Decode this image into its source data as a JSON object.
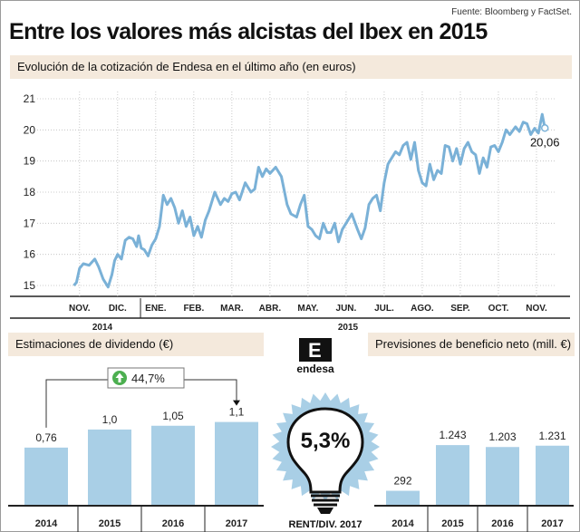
{
  "header": {
    "source": "Fuente: Bloomberg y FactSet.",
    "title": "Entre los valores más alcistas del Ibex en 2015"
  },
  "colors": {
    "series": "#7ab1d7",
    "bar": "#a9cfe6",
    "band": "#f4e9dc",
    "axis": "#333333"
  },
  "line_section": {
    "subtitle": "Evolución de la cotización de Endesa en el último año (en euros)"
  },
  "dividend_section": {
    "subtitle": "Estimaciones de dividendo (€)",
    "growth_label": "44,7%",
    "growth_icon": "arrow-up-icon"
  },
  "center_badge": {
    "logo_text": "endesa",
    "logo_mark": "E",
    "value": "5,3%",
    "caption": "RENT/DIV. 2017",
    "icon": "lightbulb-icon"
  },
  "profit_section": {
    "subtitle": "Previsiones de beneficio neto (mill. €)"
  },
  "chart_data": [
    {
      "type": "line",
      "title": "Evolución de la cotización de Endesa en el último año (en euros)",
      "ylim": [
        15,
        21
      ],
      "yticks": [
        15,
        16,
        17,
        18,
        19,
        20,
        21
      ],
      "grid": true,
      "xticks": [
        {
          "label": "NOV.",
          "x": 0
        },
        {
          "label": "DIC.",
          "x": 1
        },
        {
          "label": "ENE.",
          "x": 2
        },
        {
          "label": "FEB.",
          "x": 3
        },
        {
          "label": "MAR.",
          "x": 4
        },
        {
          "label": "ABR.",
          "x": 5
        },
        {
          "label": "MAY.",
          "x": 6
        },
        {
          "label": "JUN.",
          "x": 7
        },
        {
          "label": "JUL.",
          "x": 8
        },
        {
          "label": "AGO.",
          "x": 9
        },
        {
          "label": "SEP.",
          "x": 10
        },
        {
          "label": "OCT.",
          "x": 11
        },
        {
          "label": "NOV.",
          "x": 12
        }
      ],
      "year_labels": [
        {
          "label": "2014",
          "from": -0.4,
          "to": 1.6
        },
        {
          "label": "2015",
          "from": 1.6,
          "to": 12.5
        }
      ],
      "last_label": "20,06",
      "series": [
        {
          "x": [
            -0.15,
            -0.08,
            0.0,
            0.1,
            0.25,
            0.4,
            0.5,
            0.62,
            0.75,
            0.85,
            0.92,
            1.0,
            1.1,
            1.2,
            1.3,
            1.4,
            1.5,
            1.55,
            1.62,
            1.7,
            1.8,
            1.9,
            2.0,
            2.1,
            2.2,
            2.3,
            2.4,
            2.5,
            2.6,
            2.7,
            2.8,
            2.9,
            3.0,
            3.1,
            3.2,
            3.3,
            3.4,
            3.55,
            3.7,
            3.8,
            3.9,
            4.0,
            4.1,
            4.2,
            4.35,
            4.5,
            4.6,
            4.7,
            4.8,
            4.9,
            5.0,
            5.15,
            5.3,
            5.45,
            5.55,
            5.7,
            5.8,
            5.9,
            6.0,
            6.1,
            6.2,
            6.3,
            6.4,
            6.5,
            6.6,
            6.7,
            6.8,
            6.9,
            7.0,
            7.15,
            7.3,
            7.4,
            7.5,
            7.6,
            7.7,
            7.8,
            7.9,
            8.0,
            8.1,
            8.2,
            8.3,
            8.4,
            8.5,
            8.6,
            8.7,
            8.8,
            8.9,
            9.0,
            9.1,
            9.2,
            9.3,
            9.4,
            9.5,
            9.6,
            9.7,
            9.8,
            9.9,
            10.0,
            10.1,
            10.2,
            10.3,
            10.4,
            10.5,
            10.6,
            10.7,
            10.8,
            10.9,
            11.0,
            11.1,
            11.2,
            11.3,
            11.45,
            11.55,
            11.65,
            11.75,
            11.85,
            11.95,
            12.05,
            12.15,
            12.22
          ],
          "y": [
            15.0,
            15.1,
            15.55,
            15.7,
            15.65,
            15.85,
            15.6,
            15.2,
            14.95,
            15.35,
            15.8,
            16.0,
            15.85,
            16.45,
            16.55,
            16.5,
            16.25,
            16.6,
            16.2,
            16.15,
            15.95,
            16.3,
            16.5,
            16.9,
            17.9,
            17.6,
            17.8,
            17.5,
            17.0,
            17.4,
            16.9,
            17.2,
            16.6,
            16.9,
            16.55,
            17.1,
            17.4,
            18.0,
            17.6,
            17.8,
            17.7,
            17.95,
            18.0,
            17.75,
            18.3,
            18.0,
            18.1,
            18.8,
            18.5,
            18.75,
            18.6,
            18.8,
            18.5,
            17.6,
            17.3,
            17.2,
            17.6,
            17.9,
            16.9,
            16.8,
            16.6,
            16.5,
            17.0,
            16.7,
            16.7,
            17.0,
            16.4,
            16.8,
            17.0,
            17.3,
            16.8,
            16.5,
            16.85,
            17.6,
            17.8,
            17.9,
            17.4,
            18.3,
            18.9,
            19.1,
            19.3,
            19.2,
            19.5,
            19.6,
            19.05,
            19.6,
            18.7,
            18.3,
            18.2,
            18.9,
            18.4,
            18.7,
            18.6,
            19.5,
            19.45,
            19.0,
            19.4,
            18.9,
            19.4,
            19.6,
            19.3,
            19.2,
            18.6,
            19.1,
            18.8,
            19.45,
            19.5,
            19.3,
            19.6,
            20.0,
            19.85,
            20.1,
            19.95,
            20.25,
            20.2,
            19.85,
            20.05,
            19.9,
            20.5,
            20.06
          ]
        }
      ]
    },
    {
      "type": "bar",
      "title": "Estimaciones de dividendo (€)",
      "categories": [
        "2014",
        "2015",
        "2016",
        "2017"
      ],
      "values": [
        0.76,
        1.0,
        1.05,
        1.1
      ],
      "labels": [
        "0,76",
        "1,0",
        "1,05",
        "1,1"
      ],
      "ylim": [
        0,
        1.3
      ]
    },
    {
      "type": "bar",
      "title": "Previsiones de beneficio neto (mill. €)",
      "categories": [
        "2014",
        "2015",
        "2016",
        "2017"
      ],
      "values": [
        292,
        1243,
        1203,
        1231
      ],
      "labels": [
        "292",
        "1.243",
        "1.203",
        "1.231"
      ],
      "ylim": [
        0,
        2000
      ]
    }
  ]
}
